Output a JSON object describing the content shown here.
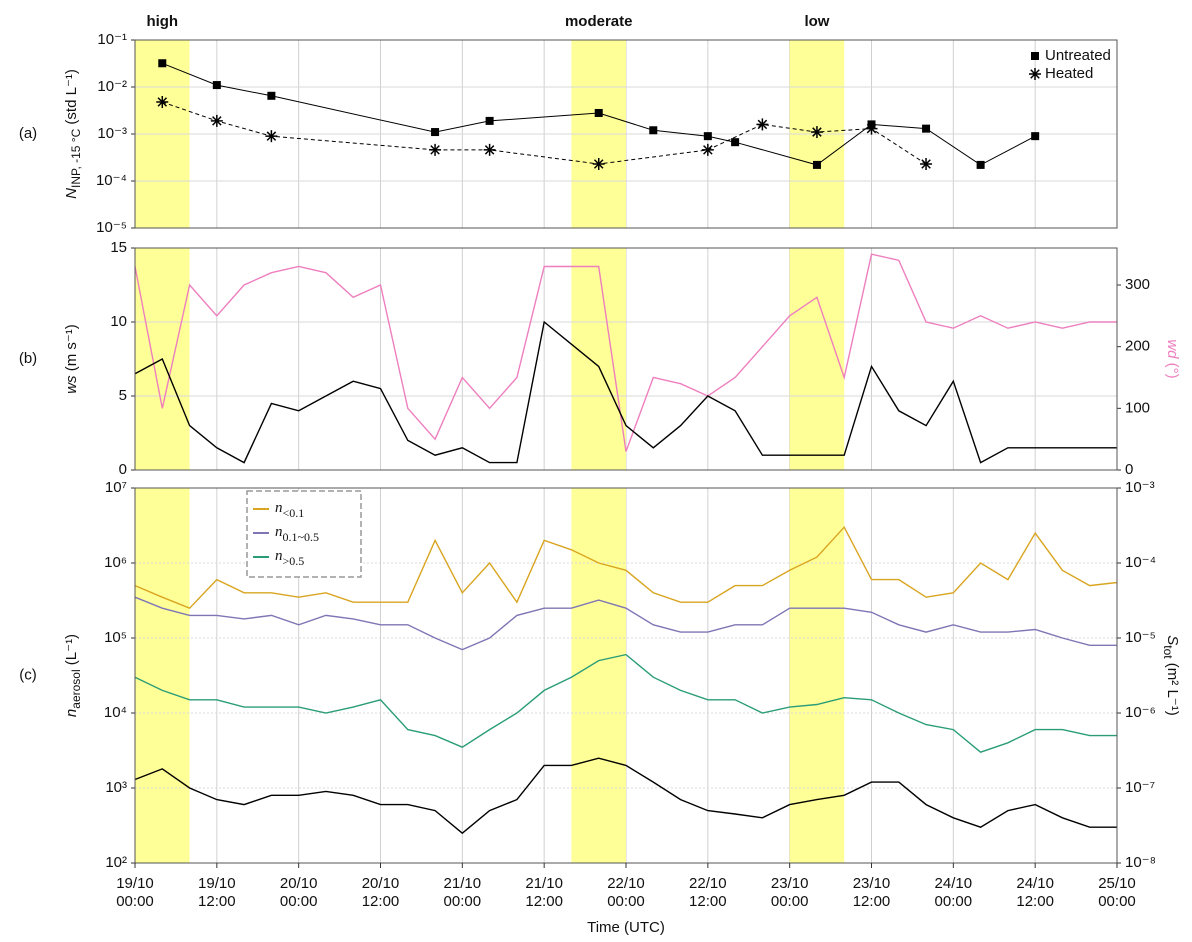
{
  "chart_data": [
    {
      "type": "line",
      "panel_label": "(a)",
      "y_label": {
        "main": "N",
        "sub": "INP, -15 °C",
        "unit": " (std L⁻¹)"
      },
      "highlight_color": "#ffff8c",
      "highlights": [
        {
          "start": "19/10 00:00",
          "end": "19/10 08:00",
          "label": "high"
        },
        {
          "start": "21/10 16:00",
          "end": "22/10 00:00",
          "label": "moderate"
        },
        {
          "start": "23/10 00:00",
          "end": "23/10 08:00",
          "label": "low"
        }
      ],
      "xlim": [
        "19/10 00:00",
        "25/10 00:00"
      ],
      "log_y": true,
      "ylim": [
        1e-05,
        0.1
      ],
      "yticks": [
        {
          "value": 1e-05,
          "label": "10⁻⁵"
        },
        {
          "value": 0.0001,
          "label": "10⁻⁴"
        },
        {
          "value": 0.001,
          "label": "10⁻³"
        },
        {
          "value": 0.01,
          "label": "10⁻²"
        },
        {
          "value": 0.1,
          "label": "10⁻¹"
        }
      ],
      "legend": "upper right",
      "series": [
        {
          "name": "Untreated",
          "color": "#000000",
          "marker": "square",
          "dash": false,
          "x": [
            "19/10 04:00",
            "19/10 12:00",
            "19/10 20:00",
            "20/10 20:00",
            "21/10 04:00",
            "21/10 20:00",
            "22/10 04:00",
            "22/10 12:00",
            "22/10 16:00",
            "23/10 04:00",
            "23/10 12:00",
            "23/10 20:00",
            "24/10 04:00",
            "24/10 12:00"
          ],
          "values": [
            0.032,
            0.011,
            0.0065,
            0.0011,
            0.0019,
            0.0028,
            0.0012,
            0.0009,
            0.00067,
            0.00022,
            0.0016,
            0.0013,
            0.00022,
            0.0009
          ]
        },
        {
          "name": "Heated",
          "color": "#000000",
          "marker": "asterisk",
          "dash": true,
          "x": [
            "19/10 04:00",
            "19/10 12:00",
            "19/10 20:00",
            "20/10 20:00",
            "21/10 04:00",
            "21/10 20:00",
            "22/10 12:00",
            "22/10 20:00",
            "23/10 04:00",
            "23/10 12:00",
            "23/10 20:00"
          ],
          "values": [
            0.0048,
            0.0019,
            0.0009,
            0.00046,
            0.00046,
            0.00023,
            0.00046,
            0.0016,
            0.0011,
            0.0013,
            0.00023
          ]
        }
      ]
    },
    {
      "type": "line",
      "panel_label": "(b)",
      "y_label": {
        "main": "ws",
        "unit": " (m s⁻¹)"
      },
      "y2_label": {
        "main": "wd",
        "unit": " (°)"
      },
      "xlim": [
        "19/10 00:00",
        "25/10 00:00"
      ],
      "ylim": [
        0,
        15
      ],
      "yticks": [
        0,
        5,
        10,
        15
      ],
      "y2lim": [
        0,
        360
      ],
      "y2ticks": [
        0,
        100,
        200,
        300
      ],
      "x": [
        "19/10 00:00",
        "19/10 04:00",
        "19/10 08:00",
        "19/10 12:00",
        "19/10 16:00",
        "19/10 20:00",
        "20/10 00:00",
        "20/10 04:00",
        "20/10 08:00",
        "20/10 12:00",
        "20/10 16:00",
        "20/10 20:00",
        "21/10 00:00",
        "21/10 04:00",
        "21/10 08:00",
        "21/10 12:00",
        "21/10 16:00",
        "21/10 20:00",
        "22/10 00:00",
        "22/10 04:00",
        "22/10 08:00",
        "22/10 12:00",
        "22/10 16:00",
        "22/10 20:00",
        "23/10 00:00",
        "23/10 04:00",
        "23/10 08:00",
        "23/10 12:00",
        "23/10 16:00",
        "23/10 20:00",
        "24/10 00:00",
        "24/10 04:00",
        "24/10 08:00",
        "24/10 12:00",
        "24/10 16:00",
        "24/10 20:00",
        "25/10 00:00"
      ],
      "series": [
        {
          "color": "#ee7fbf",
          "axis": "y2",
          "values": [
            330,
            100,
            300,
            250,
            300,
            320,
            330,
            320,
            280,
            300,
            100,
            50,
            150,
            100,
            150,
            330,
            330,
            330,
            30,
            150,
            140,
            120,
            150,
            200,
            250,
            280,
            150,
            350,
            340,
            240,
            230,
            250,
            230,
            240,
            230,
            240,
            240
          ]
        },
        {
          "color": "#000000",
          "values": [
            6.5,
            7.5,
            3,
            1.5,
            0.5,
            4.5,
            4,
            5,
            6,
            5.5,
            2,
            1,
            1.5,
            0.5,
            0.5,
            10,
            8.5,
            7,
            3,
            1.5,
            3,
            5,
            4,
            1,
            1,
            1,
            1,
            7,
            4,
            3,
            6,
            0.5,
            1.5,
            1.5,
            1.5,
            1.5,
            1.5
          ]
        }
      ]
    },
    {
      "type": "line",
      "panel_label": "(c)",
      "y_label": {
        "main": "n",
        "sub": "aerosol",
        "unit": " (L⁻¹)"
      },
      "y2_label": {
        "main": "S",
        "sub": "tot",
        "unit": " (m² L⁻¹)"
      },
      "x_label": "Time (UTC)",
      "xlim": [
        "19/10 00:00",
        "25/10 00:00"
      ],
      "xticks": [
        "19/10 00:00",
        "19/10 12:00",
        "20/10 00:00",
        "20/10 12:00",
        "21/10 00:00",
        "21/10 12:00",
        "22/10 00:00",
        "22/10 12:00",
        "23/10 00:00",
        "23/10 12:00",
        "24/10 00:00",
        "24/10 12:00",
        "25/10 00:00"
      ],
      "log_y": true,
      "ylim": [
        100,
        10000000
      ],
      "yticks": [
        {
          "value": 100,
          "label": "10²"
        },
        {
          "value": 1000,
          "label": "10³"
        },
        {
          "value": 10000,
          "label": "10⁴"
        },
        {
          "value": 100000,
          "label": "10⁵"
        },
        {
          "value": 1000000,
          "label": "10⁶"
        },
        {
          "value": 10000000,
          "label": "10⁷"
        }
      ],
      "y2lim": [
        1e-08,
        0.001
      ],
      "y2ticks": [
        {
          "value": 1e-08,
          "label": "10⁻⁸"
        },
        {
          "value": 1e-07,
          "label": "10⁻⁷"
        },
        {
          "value": 1e-06,
          "label": "10⁻⁶"
        },
        {
          "value": 1e-05,
          "label": "10⁻⁵"
        },
        {
          "value": 0.0001,
          "label": "10⁻⁴"
        },
        {
          "value": 0.001,
          "label": "10⁻³"
        }
      ],
      "legend": "upper left",
      "x": [
        "19/10 00:00",
        "19/10 04:00",
        "19/10 08:00",
        "19/10 12:00",
        "19/10 16:00",
        "19/10 20:00",
        "20/10 00:00",
        "20/10 04:00",
        "20/10 08:00",
        "20/10 12:00",
        "20/10 16:00",
        "20/10 20:00",
        "21/10 00:00",
        "21/10 04:00",
        "21/10 08:00",
        "21/10 12:00",
        "21/10 16:00",
        "21/10 20:00",
        "22/10 00:00",
        "22/10 04:00",
        "22/10 08:00",
        "22/10 12:00",
        "22/10 16:00",
        "22/10 20:00",
        "23/10 00:00",
        "23/10 04:00",
        "23/10 08:00",
        "23/10 12:00",
        "23/10 16:00",
        "23/10 20:00",
        "24/10 00:00",
        "24/10 04:00",
        "24/10 08:00",
        "24/10 12:00",
        "24/10 16:00",
        "24/10 20:00",
        "25/10 00:00"
      ],
      "series": [
        {
          "name": "n<0.1",
          "color": "#d9a520",
          "values": [
            500000,
            350000,
            250000,
            600000,
            400000,
            400000,
            350000,
            400000,
            300000,
            300000,
            300000,
            2000000,
            400000,
            1000000,
            300000,
            2000000,
            1500000,
            1000000,
            800000,
            400000,
            300000,
            300000,
            500000,
            500000,
            800000,
            1200000,
            3000000,
            600000,
            600000,
            350000,
            400000,
            1000000,
            600000,
            2500000,
            800000,
            500000,
            550000
          ]
        },
        {
          "name": "n0.1~0.5",
          "color": "#7e76b5",
          "values": [
            350000,
            250000,
            200000,
            200000,
            180000,
            200000,
            150000,
            200000,
            180000,
            150000,
            150000,
            100000,
            70000,
            100000,
            200000,
            250000,
            250000,
            320000,
            250000,
            150000,
            120000,
            120000,
            150000,
            150000,
            250000,
            250000,
            250000,
            220000,
            150000,
            120000,
            150000,
            120000,
            120000,
            130000,
            100000,
            80000,
            80000
          ]
        },
        {
          "name": "n>0.5",
          "color": "#2a9d78",
          "values": [
            30000,
            20000,
            15000,
            15000,
            12000,
            12000,
            12000,
            10000,
            12000,
            15000,
            6000,
            5000,
            3500,
            6000,
            10000,
            20000,
            30000,
            50000,
            60000,
            30000,
            20000,
            15000,
            15000,
            10000,
            12000,
            13000,
            16000,
            15000,
            10000,
            7000,
            6000,
            3000,
            4000,
            6000,
            6000,
            5000,
            5000
          ]
        },
        {
          "color": "#000000",
          "axis": "y2",
          "values": [
            1.3e-07,
            1.8e-07,
            1e-07,
            7e-08,
            6e-08,
            8e-08,
            8e-08,
            9e-08,
            8e-08,
            6e-08,
            6e-08,
            5e-08,
            2.5e-08,
            5e-08,
            7e-08,
            2e-07,
            2e-07,
            2.5e-07,
            2e-07,
            1.2e-07,
            7e-08,
            5e-08,
            4.5e-08,
            4e-08,
            6e-08,
            7e-08,
            8e-08,
            1.2e-07,
            1.2e-07,
            6e-08,
            4e-08,
            3e-08,
            5e-08,
            6e-08,
            4e-08,
            3e-08,
            3e-08
          ]
        }
      ]
    }
  ]
}
